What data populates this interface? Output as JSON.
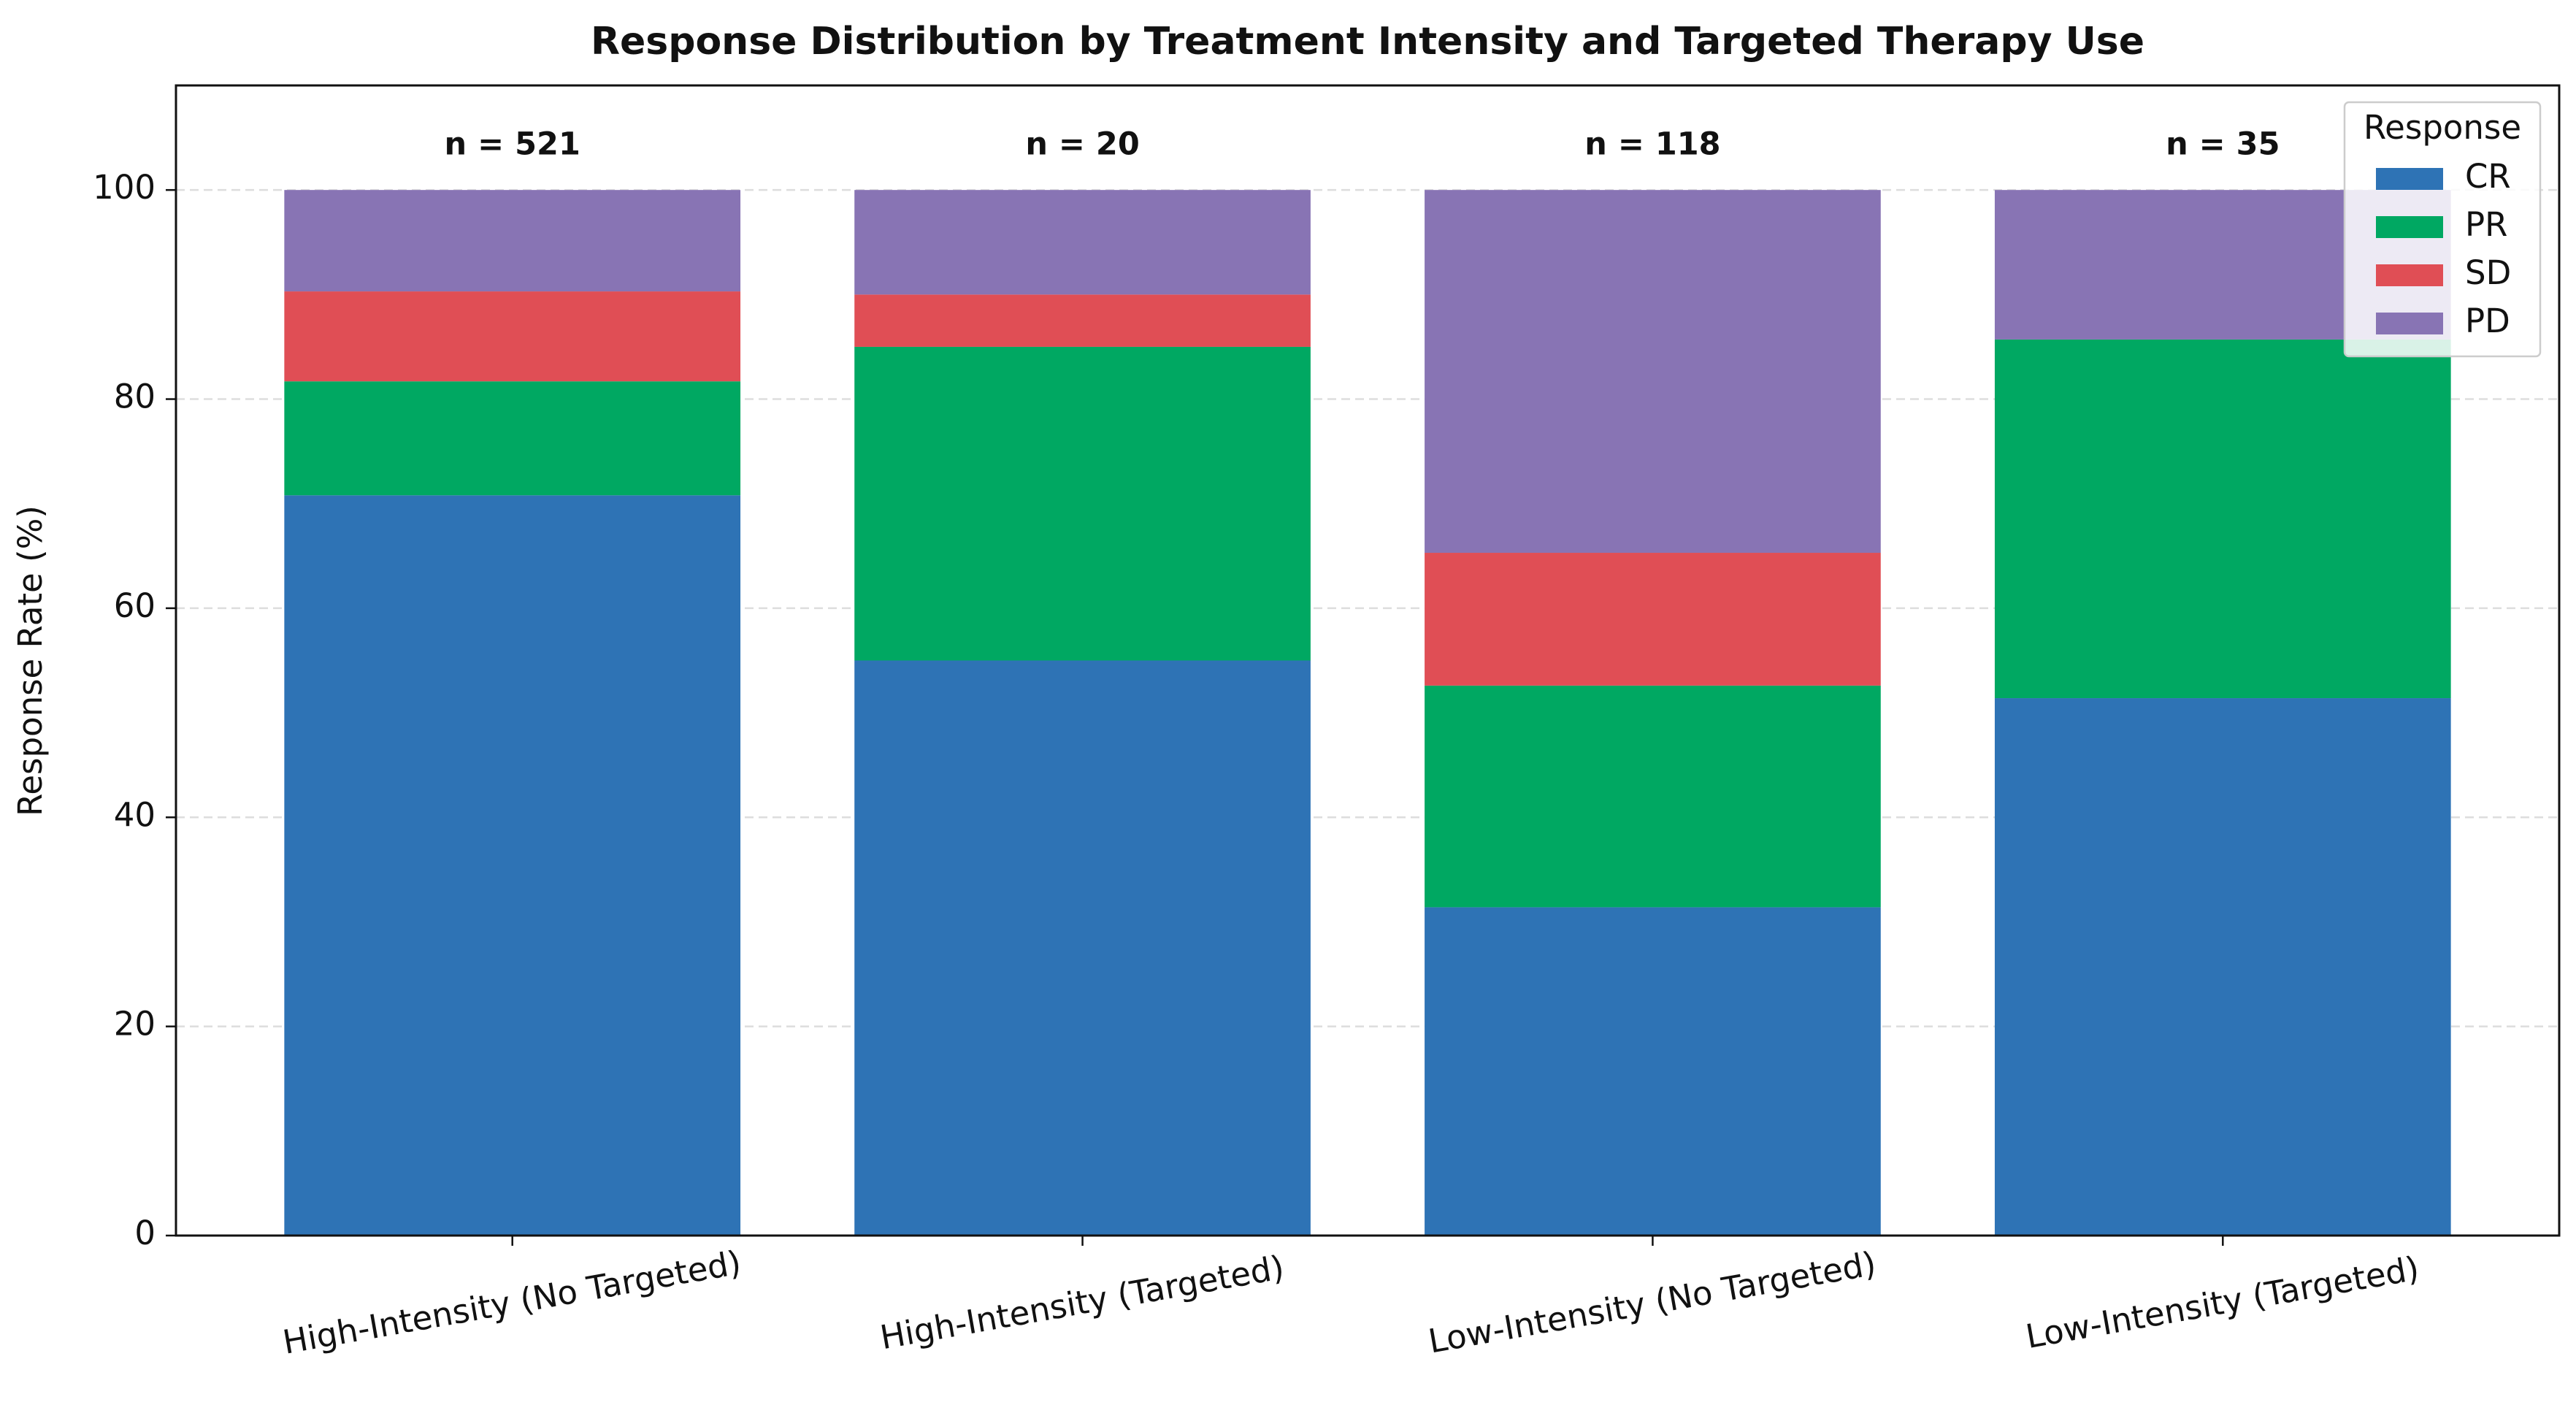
{
  "chart_data": {
    "type": "stacked_bar",
    "title": "Response Distribution by Treatment Intensity and Targeted Therapy Use",
    "y_label": "Response Rate (%)",
    "categories": [
      "High-Intensity (No Targeted)",
      "High-Intensity (Targeted)",
      "Low-Intensity (No Targeted)",
      "Low-Intensity (Targeted)"
    ],
    "annotations": [
      "n = 521",
      "n = 20",
      "n = 118",
      "n = 35"
    ],
    "series": [
      {
        "name": "CR",
        "color": "#2e73b5",
        "values": [
          70.8,
          55.0,
          31.4,
          51.4
        ]
      },
      {
        "name": "PR",
        "color": "#00a862",
        "values": [
          10.9,
          30.0,
          21.2,
          34.3
        ]
      },
      {
        "name": "SD",
        "color": "#e04e55",
        "values": [
          8.6,
          5.0,
          12.7,
          0
        ]
      },
      {
        "name": "PD",
        "color": "#8874b4",
        "values": [
          9.7,
          10.0,
          34.7,
          14.3
        ]
      }
    ],
    "legend_title": "Response",
    "legend_position": "upper right",
    "ylim": [
      0,
      110
    ],
    "yticks": [
      0,
      20,
      40,
      60,
      80,
      100
    ],
    "grid": true
  }
}
